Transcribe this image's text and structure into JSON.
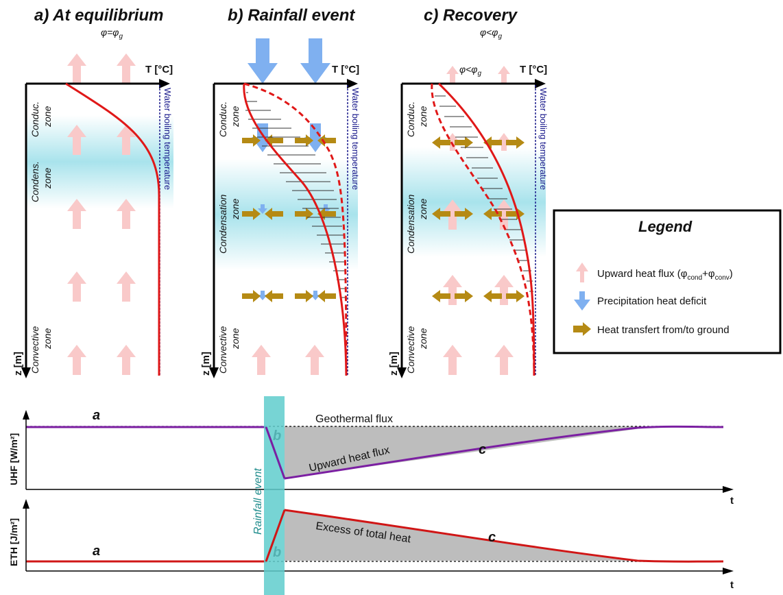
{
  "panels": {
    "a": {
      "title": "a) At equilibrium",
      "subtitle": "φ=φ",
      "subtitle_sub": "g",
      "zones": {
        "conduc": [
          "Conduc.",
          "zone"
        ],
        "condens": [
          "Condens.",
          "zone"
        ],
        "convective": [
          "Convective",
          "zone"
        ]
      }
    },
    "b": {
      "title": "b) Rainfall event",
      "zones": {
        "conduc": [
          "Conduc.",
          "zone"
        ],
        "condens": [
          "Condensation",
          "zone"
        ],
        "convective": [
          "Convective",
          "zone"
        ]
      }
    },
    "c": {
      "title": "c) Recovery",
      "subtitle": "φ<φ",
      "subtitle_sub": "g",
      "inner_label": "φ<φ",
      "inner_label_sub": "g",
      "zones": {
        "conduc": [
          "Conduc.",
          "zone"
        ],
        "condens": [
          "Condensation",
          "zone"
        ],
        "convective": [
          "Convective",
          "zone"
        ]
      }
    }
  },
  "axes": {
    "temperature": "T [°C]",
    "depth": "z [m]",
    "boiling": "Water boiling temperature"
  },
  "legend": {
    "title": "Legend",
    "items": [
      {
        "label": "Upward heat flux (φ",
        "sub1": "cond",
        "mid": "+φ",
        "sub2": "conv",
        "end": ")",
        "icon": "pink-up-arrow",
        "color": "#f7c5c5"
      },
      {
        "label": "Precipitation heat deficit",
        "icon": "blue-down-arrow",
        "color": "#7fb0f0"
      },
      {
        "label": "Heat transfert from/to ground",
        "icon": "gold-right-arrow",
        "color": "#b58a14"
      }
    ]
  },
  "timeline": {
    "uhf": {
      "ylabel": "UHF [W/m²]",
      "reference": "Geothermal flux",
      "curve": "Upward heat flux",
      "phase_a": "a",
      "phase_b": "b",
      "phase_c": "c",
      "color": "#7b1fa2"
    },
    "eth": {
      "ylabel": "ETH [J/m²]",
      "area_label": "Excess of total heat",
      "phase_a": "a",
      "phase_b": "b",
      "phase_c": "c",
      "color": "#d01616"
    },
    "event": "Rainfall event",
    "t_axis": "t",
    "colors": {
      "event_band": "#5fcccc",
      "fill": "#bdbdbd"
    }
  }
}
